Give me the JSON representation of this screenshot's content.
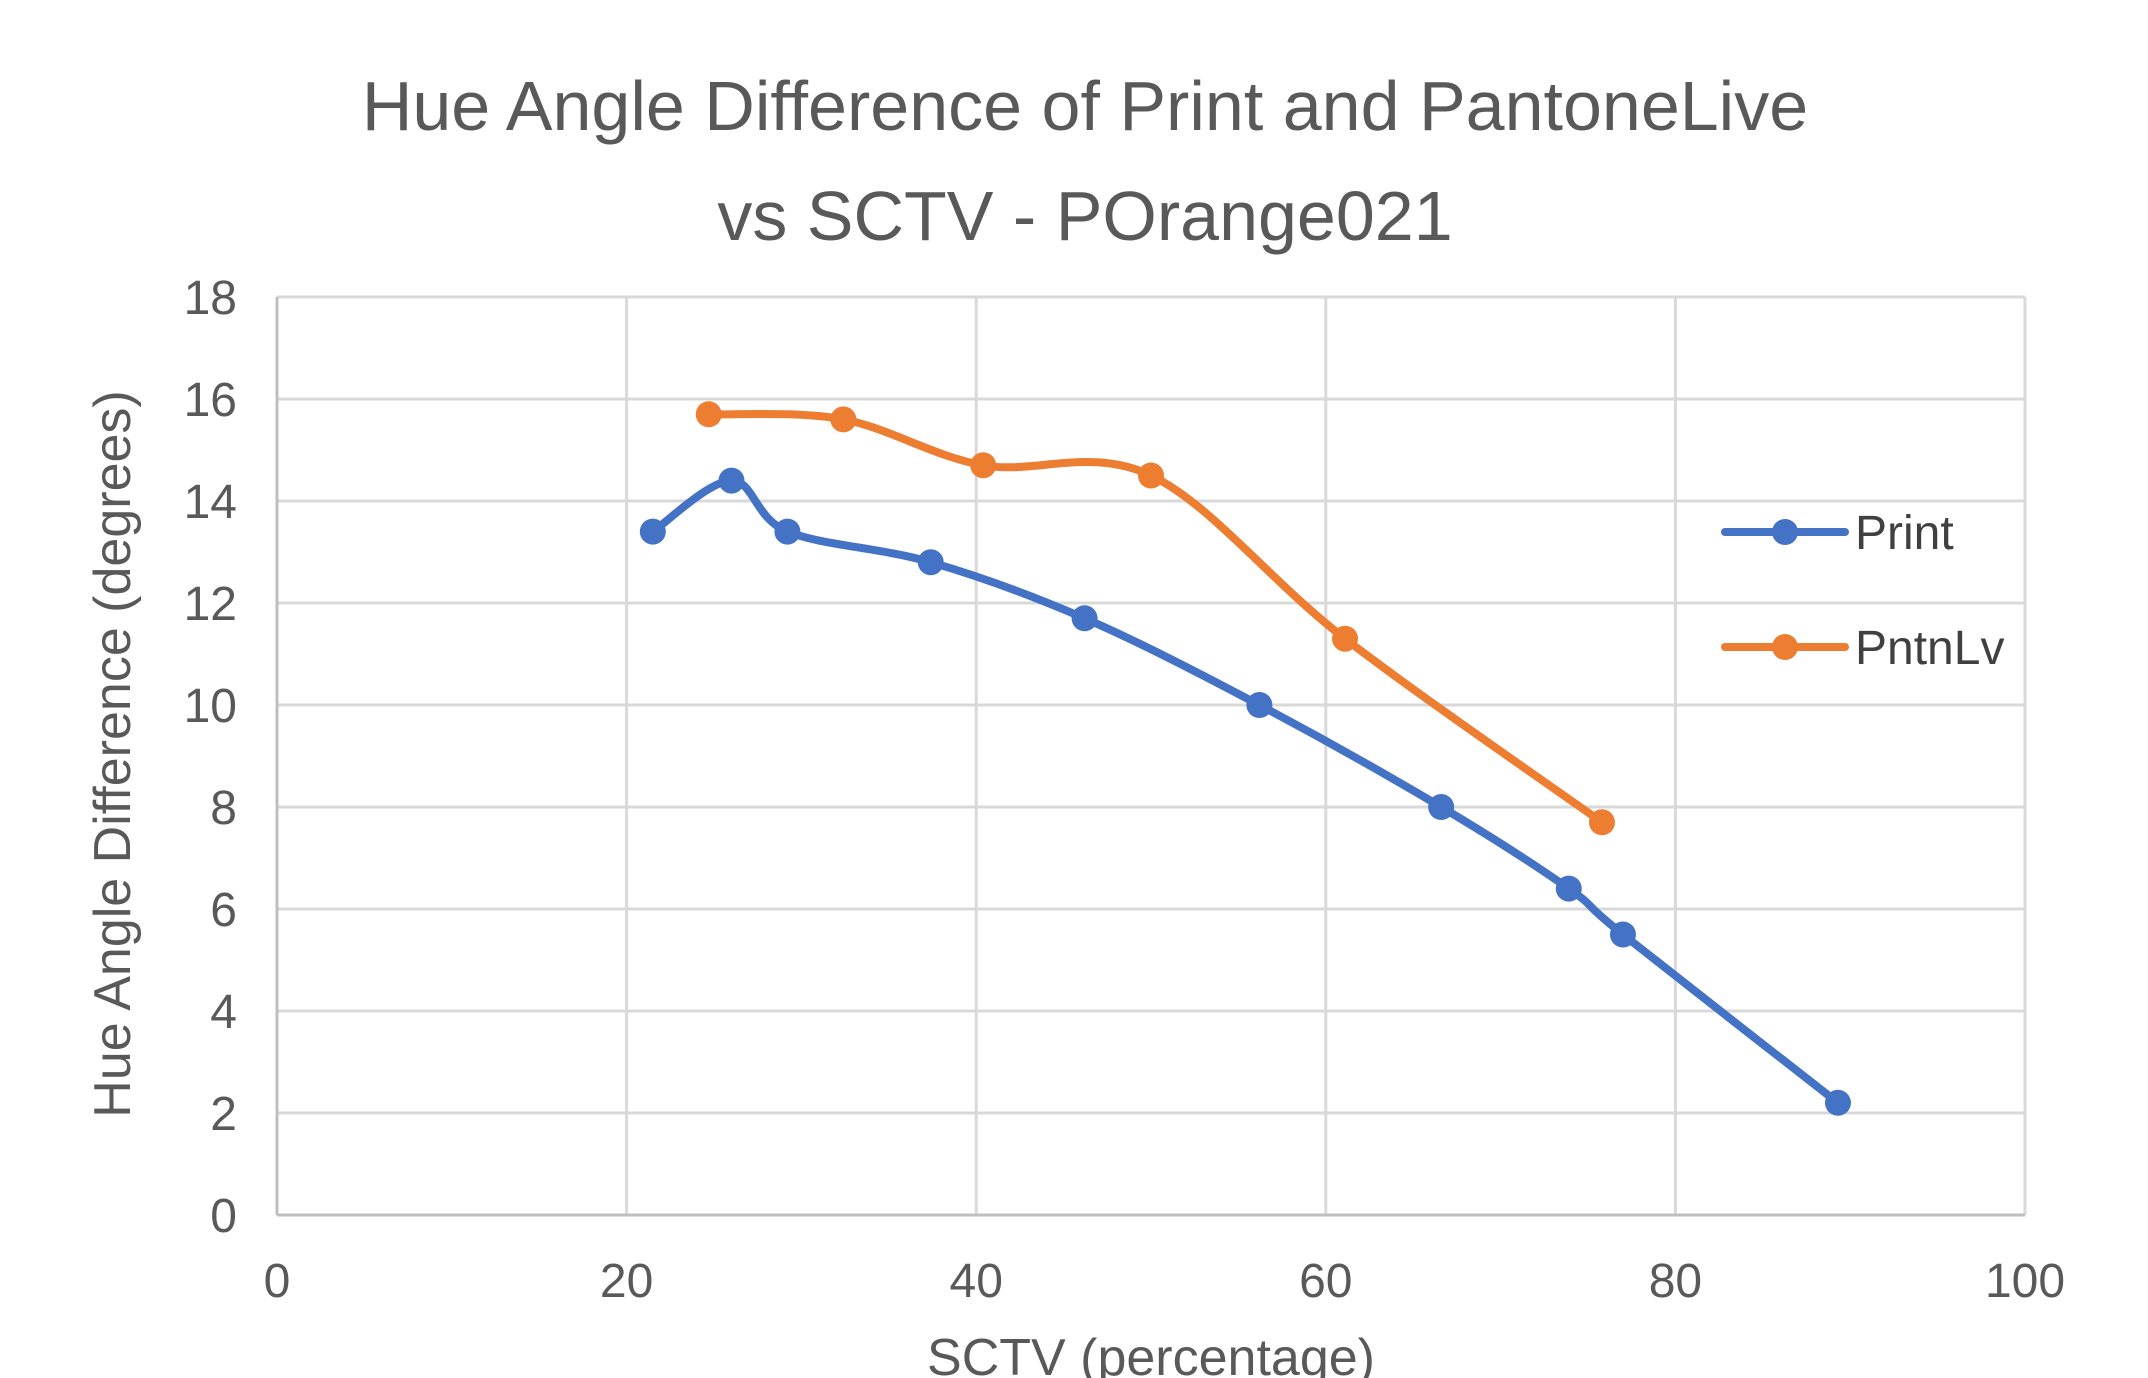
{
  "chart_data": {
    "type": "line",
    "title_lines": [
      "Hue Angle Difference  of Print and PantoneLive",
      "vs SCTV - POrange021"
    ],
    "xlabel": "SCTV (percentage)",
    "ylabel": "Hue Angle Difference (degrees)",
    "xlim": [
      0,
      100
    ],
    "ylim": [
      0,
      18
    ],
    "x_ticks": [
      0,
      20,
      40,
      60,
      80,
      100
    ],
    "y_ticks": [
      0,
      2,
      4,
      6,
      8,
      10,
      12,
      14,
      16,
      18
    ],
    "grid": true,
    "smooth": true,
    "legend_position": "right",
    "series": [
      {
        "name": "Print",
        "color": "#4472c4",
        "points": [
          [
            21.5,
            13.4
          ],
          [
            26,
            14.4
          ],
          [
            29.2,
            13.4
          ],
          [
            37.4,
            12.8
          ],
          [
            46.2,
            11.7
          ],
          [
            56.2,
            10.0
          ],
          [
            66.6,
            8.0
          ],
          [
            73.9,
            6.4
          ],
          [
            77.0,
            5.5
          ],
          [
            89.3,
            2.2
          ]
        ]
      },
      {
        "name": "PntnLv",
        "color": "#ed7d31",
        "points": [
          [
            24.7,
            15.7
          ],
          [
            32.4,
            15.6
          ],
          [
            40.4,
            14.7
          ],
          [
            50.0,
            14.5
          ],
          [
            61.1,
            11.3
          ],
          [
            75.8,
            7.7
          ]
        ]
      }
    ]
  }
}
